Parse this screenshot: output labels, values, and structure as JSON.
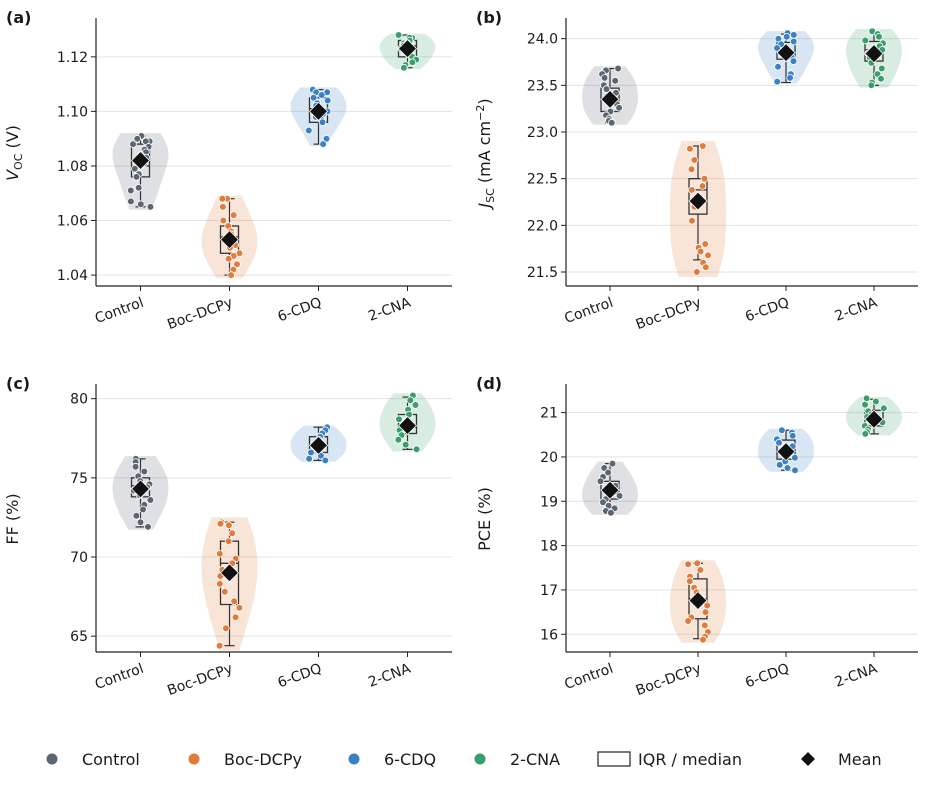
{
  "figure": {
    "legend": {
      "items": [
        {
          "kind": "dot",
          "label": "Control",
          "color": "#5a6672"
        },
        {
          "kind": "dot",
          "label": "Boc-DCPy",
          "color": "#e07b3c"
        },
        {
          "kind": "dot",
          "label": "6-CDQ",
          "color": "#3b82c4"
        },
        {
          "kind": "dot",
          "label": "2-CNA",
          "color": "#3a9e6c"
        },
        {
          "kind": "box",
          "label": "IQR / median",
          "color": "#333333"
        },
        {
          "kind": "diamond",
          "label": "Mean",
          "color": "#111111"
        }
      ]
    }
  },
  "chart_data": [
    {
      "panel_label": "(a)",
      "type": "violin",
      "ylabel": "V_OC (V)",
      "ylabel_parts": {
        "main": "V",
        "sub": "OC",
        "rest": " (V)"
      },
      "categories": [
        "Control",
        "Boc-DCPy",
        "6-CDQ",
        "2-CNA"
      ],
      "colors": [
        "#5a6672",
        "#e07b3c",
        "#3b82c4",
        "#3a9e6c"
      ],
      "ylim": [
        1.036,
        1.1335
      ],
      "yticks": [
        1.04,
        1.06,
        1.08,
        1.1,
        1.12
      ],
      "ytick_labels": [
        "1.04",
        "1.06",
        "1.08",
        "1.10",
        "1.12"
      ],
      "grid": true,
      "series": [
        {
          "name": "Control",
          "mean": 1.082,
          "box": {
            "q1": 1.076,
            "median": 1.08,
            "q3": 1.088,
            "whislo": 1.065,
            "whishi": 1.091
          },
          "points": [
            1.091,
            1.09,
            1.089,
            1.089,
            1.088,
            1.087,
            1.086,
            1.085,
            1.084,
            1.083,
            1.081,
            1.079,
            1.077,
            1.076,
            1.072,
            1.071,
            1.067,
            1.066,
            1.065
          ]
        },
        {
          "name": "Boc-DCPy",
          "mean": 1.053,
          "box": {
            "q1": 1.048,
            "median": 1.054,
            "q3": 1.058,
            "whislo": 1.04,
            "whishi": 1.068
          },
          "points": [
            1.068,
            1.068,
            1.065,
            1.062,
            1.06,
            1.058,
            1.056,
            1.055,
            1.054,
            1.053,
            1.052,
            1.051,
            1.05,
            1.048,
            1.047,
            1.046,
            1.044,
            1.042,
            1.04
          ]
        },
        {
          "name": "6-CDQ",
          "mean": 1.1,
          "box": {
            "q1": 1.096,
            "median": 1.101,
            "q3": 1.105,
            "whislo": 1.088,
            "whishi": 1.108
          },
          "points": [
            1.108,
            1.107,
            1.107,
            1.106,
            1.105,
            1.104,
            1.103,
            1.102,
            1.101,
            1.1,
            1.099,
            1.098,
            1.097,
            1.096,
            1.093,
            1.09,
            1.088
          ]
        },
        {
          "name": "2-CNA",
          "mean": 1.123,
          "box": {
            "q1": 1.12,
            "median": 1.124,
            "q3": 1.126,
            "whislo": 1.116,
            "whishi": 1.128
          },
          "points": [
            1.128,
            1.127,
            1.127,
            1.126,
            1.125,
            1.125,
            1.124,
            1.123,
            1.122,
            1.121,
            1.12,
            1.119,
            1.118,
            1.117,
            1.116
          ]
        }
      ]
    },
    {
      "panel_label": "(b)",
      "type": "violin",
      "ylabel": "J_SC (mA cm^-2)",
      "ylabel_parts": {
        "main": "J",
        "sub": "SC",
        "rest": " (mA cm",
        "sup": "−2",
        "end": ")"
      },
      "categories": [
        "Control",
        "Boc-DCPy",
        "6-CDQ",
        "2-CNA"
      ],
      "colors": [
        "#5a6672",
        "#e07b3c",
        "#3b82c4",
        "#3a9e6c"
      ],
      "ylim": [
        21.35,
        24.2
      ],
      "yticks": [
        21.5,
        22.0,
        22.5,
        23.0,
        23.5,
        24.0
      ],
      "ytick_labels": [
        "21.5",
        "22.0",
        "22.5",
        "23.0",
        "23.5",
        "24.0"
      ],
      "grid": true,
      "series": [
        {
          "name": "Control",
          "mean": 23.35,
          "box": {
            "q1": 23.22,
            "median": 23.36,
            "q3": 23.47,
            "whislo": 23.1,
            "whishi": 23.68
          },
          "points": [
            23.68,
            23.66,
            23.62,
            23.58,
            23.55,
            23.5,
            23.46,
            23.42,
            23.38,
            23.35,
            23.3,
            23.26,
            23.22,
            23.18,
            23.14,
            23.12,
            23.1
          ]
        },
        {
          "name": "Boc-DCPy",
          "mean": 22.26,
          "box": {
            "q1": 22.12,
            "median": 22.38,
            "q3": 22.5,
            "whislo": 21.63,
            "whishi": 22.85
          },
          "points": [
            22.85,
            22.82,
            22.7,
            22.6,
            22.5,
            22.42,
            22.38,
            22.3,
            22.2,
            22.05,
            21.8,
            21.76,
            21.72,
            21.68,
            21.6,
            21.55,
            21.5
          ]
        },
        {
          "name": "6-CDQ",
          "mean": 23.85,
          "box": {
            "q1": 23.78,
            "median": 23.86,
            "q3": 23.96,
            "whislo": 23.53,
            "whishi": 24.05
          },
          "points": [
            24.06,
            24.04,
            24.02,
            24.0,
            23.97,
            23.94,
            23.9,
            23.87,
            23.84,
            23.8,
            23.76,
            23.7,
            23.62,
            23.58,
            23.54
          ]
        },
        {
          "name": "2-CNA",
          "mean": 23.84,
          "box": {
            "q1": 23.76,
            "median": 23.88,
            "q3": 23.97,
            "whislo": 23.5,
            "whishi": 24.08
          },
          "points": [
            24.08,
            24.05,
            24.02,
            23.98,
            23.95,
            23.92,
            23.88,
            23.84,
            23.8,
            23.74,
            23.68,
            23.62,
            23.57,
            23.53,
            23.5
          ]
        }
      ]
    },
    {
      "panel_label": "(c)",
      "type": "violin",
      "ylabel": "FF (%)",
      "ylabel_parts": {
        "main": "FF (%)"
      },
      "categories": [
        "Control",
        "Boc-DCPy",
        "6-CDQ",
        "2-CNA"
      ],
      "colors": [
        "#5a6672",
        "#e07b3c",
        "#3b82c4",
        "#3a9e6c"
      ],
      "ylim": [
        64.0,
        80.8
      ],
      "yticks": [
        65,
        70,
        75,
        80
      ],
      "ytick_labels": [
        "65",
        "70",
        "75",
        "80"
      ],
      "grid": true,
      "series": [
        {
          "name": "Control",
          "mean": 74.3,
          "box": {
            "q1": 73.8,
            "median": 74.5,
            "q3": 75.0,
            "whislo": 71.9,
            "whishi": 76.2
          },
          "points": [
            76.2,
            76.0,
            75.7,
            75.4,
            75.1,
            74.8,
            74.6,
            74.4,
            74.2,
            73.9,
            73.6,
            73.3,
            73.0,
            72.6,
            72.2,
            71.9
          ]
        },
        {
          "name": "Boc-DCPy",
          "mean": 69.0,
          "box": {
            "q1": 67.0,
            "median": 69.6,
            "q3": 71.0,
            "whislo": 64.4,
            "whishi": 72.2
          },
          "points": [
            72.2,
            72.1,
            72.0,
            71.5,
            71.0,
            70.2,
            69.9,
            69.6,
            69.2,
            68.8,
            68.3,
            67.8,
            67.2,
            66.8,
            66.2,
            65.5,
            64.4
          ]
        },
        {
          "name": "6-CDQ",
          "mean": 77.05,
          "box": {
            "q1": 76.6,
            "median": 77.0,
            "q3": 77.6,
            "whislo": 76.1,
            "whishi": 78.2
          },
          "points": [
            78.2,
            78.0,
            77.8,
            77.6,
            77.4,
            77.2,
            77.0,
            76.8,
            76.6,
            76.4,
            76.2,
            76.1
          ]
        },
        {
          "name": "2-CNA",
          "mean": 78.3,
          "box": {
            "q1": 77.8,
            "median": 78.2,
            "q3": 79.0,
            "whislo": 76.8,
            "whishi": 80.1
          },
          "points": [
            80.2,
            79.9,
            79.6,
            79.3,
            79.0,
            78.7,
            78.4,
            78.2,
            78.0,
            77.7,
            77.4,
            77.1,
            76.8
          ]
        }
      ]
    },
    {
      "panel_label": "(d)",
      "type": "violin",
      "ylabel": "PCE (%)",
      "ylabel_parts": {
        "main": "PCE (%)"
      },
      "categories": [
        "Control",
        "Boc-DCPy",
        "6-CDQ",
        "2-CNA"
      ],
      "colors": [
        "#5a6672",
        "#e07b3c",
        "#3b82c4",
        "#3a9e6c"
      ],
      "ylim": [
        15.6,
        21.6
      ],
      "yticks": [
        16,
        17,
        18,
        19,
        20,
        21
      ],
      "ytick_labels": [
        "16",
        "17",
        "18",
        "19",
        "20",
        "21"
      ],
      "grid": true,
      "series": [
        {
          "name": "Control",
          "mean": 19.25,
          "box": {
            "q1": 19.05,
            "median": 19.25,
            "q3": 19.45,
            "whislo": 18.75,
            "whishi": 19.85
          },
          "points": [
            19.85,
            19.75,
            19.65,
            19.55,
            19.45,
            19.35,
            19.28,
            19.2,
            19.12,
            19.05,
            18.98,
            18.9,
            18.84,
            18.78,
            18.74
          ]
        },
        {
          "name": "Boc-DCPy",
          "mean": 16.76,
          "box": {
            "q1": 16.35,
            "median": 16.8,
            "q3": 17.25,
            "whislo": 15.9,
            "whishi": 17.6
          },
          "points": [
            17.6,
            17.58,
            17.45,
            17.3,
            17.2,
            17.05,
            16.95,
            16.8,
            16.65,
            16.5,
            16.38,
            16.3,
            16.2,
            16.05,
            15.95,
            15.88
          ]
        },
        {
          "name": "6-CDQ",
          "mean": 20.12,
          "box": {
            "q1": 19.95,
            "median": 20.1,
            "q3": 20.38,
            "whislo": 19.7,
            "whishi": 20.6
          },
          "points": [
            20.6,
            20.55,
            20.48,
            20.4,
            20.32,
            20.24,
            20.15,
            20.06,
            19.98,
            19.9,
            19.82,
            19.75,
            19.7
          ]
        },
        {
          "name": "2-CNA",
          "mean": 20.85,
          "box": {
            "q1": 20.7,
            "median": 20.86,
            "q3": 21.05,
            "whislo": 20.52,
            "whishi": 21.3
          },
          "points": [
            21.32,
            21.25,
            21.18,
            21.1,
            21.03,
            20.96,
            20.9,
            20.84,
            20.78,
            20.7,
            20.62,
            20.56,
            20.52
          ]
        }
      ]
    }
  ]
}
